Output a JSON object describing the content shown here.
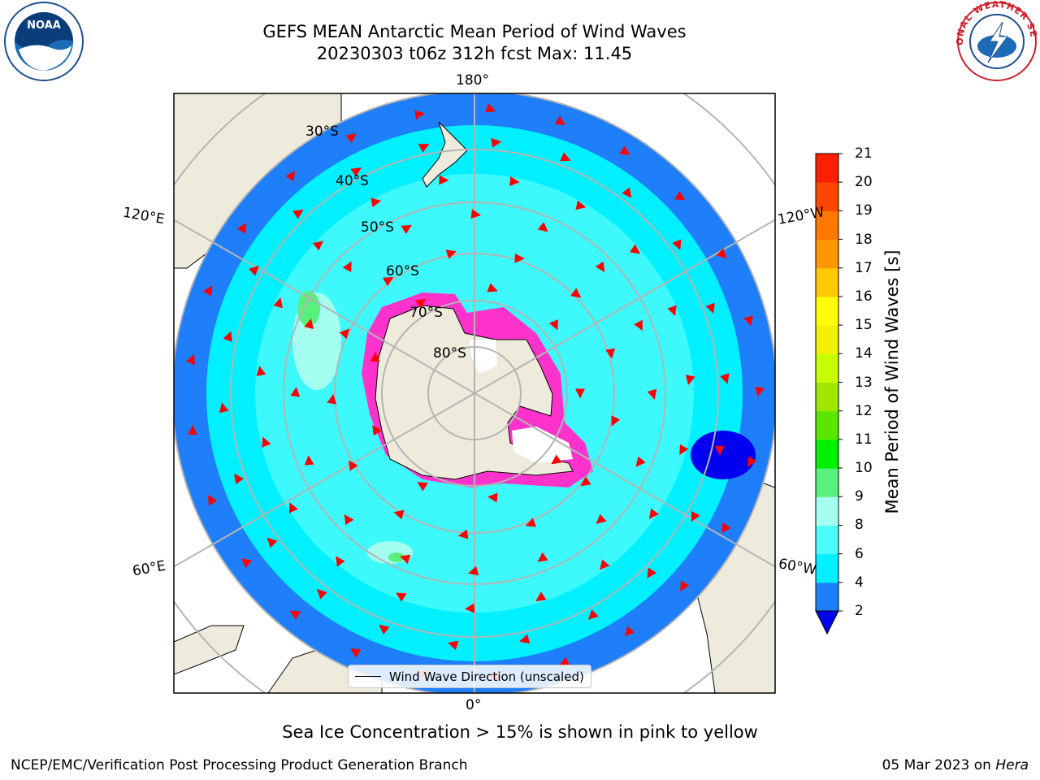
{
  "header": {
    "title_line1": "GEFS MEAN Antarctic Mean Period of Wind Waves",
    "title_line2": "20230303 t06z 312h fcst   Max: 11.45"
  },
  "logos": {
    "left": "NOAA",
    "right": "NATIONAL WEATHER SERVICE"
  },
  "map": {
    "projection": "south-polar-stereographic",
    "longitude_labels": {
      "top": "180°",
      "bottom": "0°",
      "upper_left": "120°E",
      "upper_right": "120°W",
      "lower_left": "60°E",
      "lower_right": "60°W"
    },
    "latitude_labels": [
      "30°S",
      "40°S",
      "50°S",
      "60°S",
      "70°S",
      "80°S"
    ],
    "colors": {
      "land": "#efebdc",
      "ocean_2_4": "#1f7ffa",
      "ocean_4_6": "#00ffff",
      "ocean_6_8": "#4dfbfb",
      "ocean_8_9": "#a5fff0",
      "ocean_9_10": "#5af07d",
      "sea_ice": "#ff33cc",
      "arrows": "#ff0000",
      "grid": "#b4b4b4"
    },
    "legend_label": "Wind Wave Direction (unscaled)"
  },
  "colorbar": {
    "label": "Mean Period of Wind Waves [s]",
    "ticks": [
      "2",
      "4",
      "6",
      "8",
      "9",
      "10",
      "11",
      "12",
      "13",
      "14",
      "15",
      "16",
      "17",
      "18",
      "19",
      "20",
      "21"
    ],
    "colors": [
      "#1f7ffa",
      "#00f0ff",
      "#4dfbfb",
      "#a5fff0",
      "#5af07d",
      "#00f000",
      "#5ae600",
      "#a0e600",
      "#c8ff00",
      "#f0f000",
      "#ffff00",
      "#ffc800",
      "#ff9600",
      "#ff7800",
      "#ff4600",
      "#ff1e00"
    ],
    "extend_color": "#0000f0"
  },
  "notes": {
    "ice": "Sea Ice Concentration > 15% is shown in pink to yellow"
  },
  "footer": {
    "left": "NCEP/EMC/Verification Post Processing Product Generation Branch",
    "right_date": "05 Mar 2023 on ",
    "right_host": "Hera"
  }
}
